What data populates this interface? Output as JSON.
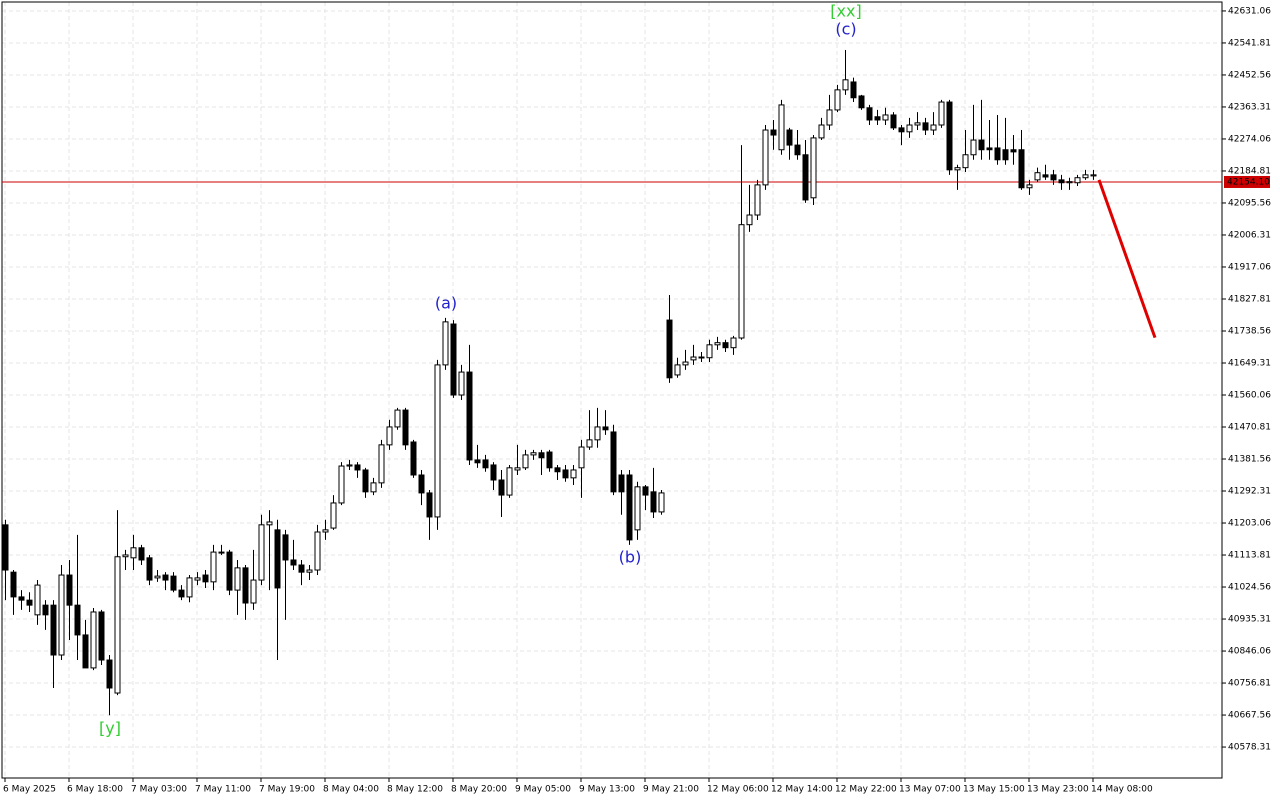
{
  "chart_data": {
    "type": "candlestick",
    "categories": [
      "6 May 2025",
      null,
      null,
      null,
      null,
      null,
      null,
      null,
      "6 May 18:00",
      null,
      null,
      null,
      null,
      null,
      null,
      null,
      "7 May 03:00",
      null,
      null,
      null,
      null,
      null,
      null,
      null,
      "7 May 11:00",
      null,
      null,
      null,
      null,
      null,
      null,
      null,
      "7 May 19:00",
      null,
      null,
      null,
      null,
      null,
      null,
      null,
      "8 May 04:00",
      null,
      null,
      null,
      null,
      null,
      null,
      null,
      "8 May 12:00",
      null,
      null,
      null,
      null,
      null,
      null,
      null,
      "8 May 20:00",
      null,
      null,
      null,
      null,
      null,
      null,
      null,
      "9 May 05:00",
      null,
      null,
      null,
      null,
      null,
      null,
      null,
      "9 May 13:00",
      null,
      null,
      null,
      null,
      null,
      null,
      null,
      "9 May 21:00",
      null,
      null,
      null,
      null,
      null,
      null,
      null,
      "12 May 06:00",
      null,
      null,
      null,
      null,
      null,
      null,
      null,
      "12 May 14:00",
      null,
      null,
      null,
      null,
      null,
      null,
      null,
      "12 May 22:00",
      null,
      null,
      null,
      null,
      null,
      null,
      null,
      "13 May 07:00",
      null,
      null,
      null,
      null,
      null,
      null,
      null,
      "13 May 15:00",
      null,
      null,
      null,
      null,
      null,
      null,
      null,
      "13 May 23:00",
      null,
      null,
      null,
      null,
      null,
      null,
      null,
      "14 May 08:00"
    ],
    "open": [
      41198,
      41066,
      40997,
      40988,
      40947,
      40974,
      40974,
      40835,
      41058,
      40974,
      40891,
      40799,
      40955,
      40821,
      40729,
      41109,
      41106,
      41134,
      41106,
      41050,
      41058,
      41055,
      41016,
      40997,
      41044,
      41058,
      41039,
      41120,
      41122,
      41016,
      41078,
      40980,
      41044,
      41198,
      41184,
      41170,
      41100,
      41086,
      41066,
      41072,
      41178,
      41189,
      41259,
      41362,
      41365,
      41351,
      41290,
      41315,
      41421,
      41471,
      41518,
      41429,
      41337,
      41287,
      41220,
      41644,
      41758,
      41560,
      41624,
      41379,
      41379,
      41365,
      41323,
      41281,
      41351,
      41357,
      41393,
      41399,
      41401,
      41357,
      41351,
      41329,
      41357,
      41415,
      41435,
      41471,
      41457,
      41337,
      41337,
      41184,
      41304,
      41290,
      41234,
      41769,
      41616,
      41644,
      41658,
      41664,
      41664,
      41700,
      41706,
      41692,
      41719,
      42035,
      42062,
      42146,
      42299,
      42244,
      42299,
      42257,
      42230,
      42110,
      42277,
      42313,
      42355,
      42411,
      42433,
      42394,
      42361,
      42336,
      42327,
      42341,
      42305,
      42294,
      42313,
      42319,
      42299,
      42313,
      42377,
      42188,
      42194,
      42230,
      42271,
      42249,
      42249,
      42244,
      42244,
      42244,
      42138,
      42160,
      42174,
      42174,
      42160,
      42152,
      42152,
      42166,
      42171
    ],
    "high": [
      41212,
      41072,
      41016,
      41010,
      41044,
      40988,
      40988,
      41086,
      41100,
      41170,
      40933,
      40966,
      40961,
      40835,
      41239,
      41128,
      41170,
      41142,
      41114,
      41072,
      41066,
      41066,
      41030,
      41058,
      41066,
      41072,
      41142,
      41142,
      41128,
      41100,
      41086,
      41128,
      41226,
      41239,
      41212,
      41184,
      41156,
      41100,
      41086,
      41198,
      41212,
      41281,
      41373,
      41379,
      41373,
      41357,
      41329,
      41435,
      41491,
      41524,
      41524,
      41435,
      41351,
      41295,
      41658,
      41775,
      41769,
      41644,
      41700,
      41421,
      41393,
      41373,
      41351,
      41365,
      41421,
      41407,
      41407,
      41407,
      41407,
      41365,
      41365,
      41365,
      41435,
      41518,
      41524,
      41518,
      41477,
      41351,
      41351,
      41318,
      41309,
      41357,
      41295,
      41839,
      41664,
      41686,
      41700,
      41680,
      41714,
      41722,
      41714,
      41725,
      42257,
      42146,
      42160,
      42313,
      42327,
      42383,
      42305,
      42299,
      42271,
      42285,
      42333,
      42397,
      42425,
      42522,
      42445,
      42397,
      42369,
      42355,
      42361,
      42349,
      42313,
      42333,
      42349,
      42333,
      42349,
      42383,
      42383,
      42202,
      42299,
      42369,
      42383,
      42327,
      42341,
      42333,
      42285,
      42299,
      42160,
      42194,
      42202,
      42188,
      42174,
      42166,
      42174,
      42188,
      42188
    ],
    "low": [
      40988,
      40947,
      40961,
      40955,
      40919,
      40905,
      40743,
      40821,
      40877,
      40821,
      40799,
      40793,
      40807,
      40667,
      40723,
      41072,
      41072,
      41086,
      41030,
      41039,
      41016,
      41010,
      40988,
      40982,
      41030,
      41022,
      41016,
      41114,
      41002,
      40947,
      40933,
      40961,
      41030,
      41016,
      40821,
      40933,
      41072,
      41030,
      41044,
      41058,
      41156,
      41184,
      41253,
      41351,
      41329,
      41273,
      41281,
      41301,
      41407,
      41463,
      41407,
      41329,
      41253,
      41156,
      41184,
      41630,
      41552,
      41546,
      41365,
      41357,
      41346,
      41295,
      41220,
      41273,
      41337,
      41351,
      41379,
      41337,
      41346,
      41323,
      41318,
      41309,
      41273,
      41407,
      41413,
      41449,
      41281,
      41226,
      41142,
      41156,
      41239,
      41217,
      41226,
      41594,
      41608,
      41630,
      41644,
      41652,
      41652,
      41686,
      41680,
      41672,
      41714,
      42015,
      42048,
      42132,
      42244,
      42230,
      42216,
      42216,
      42096,
      42090,
      42271,
      42299,
      42349,
      42397,
      42377,
      42355,
      42313,
      42313,
      42313,
      42299,
      42257,
      42277,
      42299,
      42285,
      42285,
      42305,
      42174,
      42132,
      42182,
      42216,
      42216,
      42216,
      42202,
      42202,
      42202,
      42132,
      42118,
      42155,
      42160,
      42146,
      42132,
      42132,
      42143,
      42160,
      42160
    ],
    "close": [
      41072,
      40997,
      40988,
      40974,
      41030,
      40947,
      40835,
      41058,
      40974,
      40891,
      40799,
      40955,
      40821,
      40743,
      41109,
      41114,
      41134,
      41100,
      41044,
      41055,
      41044,
      41016,
      40997,
      41050,
      41050,
      41039,
      41122,
      41122,
      41016,
      41078,
      40980,
      41044,
      41198,
      41206,
      41022,
      41100,
      41086,
      41066,
      41072,
      41178,
      41184,
      41259,
      41362,
      41365,
      41351,
      41290,
      41315,
      41421,
      41471,
      41518,
      41421,
      41337,
      41287,
      41220,
      41644,
      41764,
      41560,
      41624,
      41379,
      41371,
      41357,
      41323,
      41281,
      41357,
      41357,
      41393,
      41399,
      41385,
      41357,
      41346,
      41329,
      41351,
      41415,
      41435,
      41471,
      41463,
      41290,
      41290,
      41156,
      41304,
      41281,
      41234,
      41287,
      41608,
      41644,
      41652,
      41666,
      41666,
      41700,
      41706,
      41692,
      41719,
      42035,
      42062,
      42146,
      42299,
      42285,
      42369,
      42257,
      42230,
      42104,
      42277,
      42313,
      42355,
      42411,
      42439,
      42389,
      42361,
      42327,
      42327,
      42341,
      42305,
      42294,
      42313,
      42319,
      42299,
      42313,
      42377,
      42188,
      42194,
      42230,
      42271,
      42244,
      42244,
      42216,
      42216,
      42238,
      42138,
      42146,
      42180,
      42168,
      42160,
      42152,
      42155,
      42166,
      42174,
      42174
    ],
    "ylim": [
      40492,
      42656
    ],
    "yticks": [
      42631.06,
      42541.81,
      42452.56,
      42363.31,
      42274.06,
      42184.81,
      42095.56,
      42006.31,
      41917.06,
      41827.81,
      41738.56,
      41649.31,
      41560.06,
      41470.81,
      41381.56,
      41292.31,
      41203.06,
      41113.81,
      41024.56,
      40935.31,
      40846.06,
      40756.81,
      40667.56,
      40578.31
    ],
    "grid": true,
    "up_color": "#ffffff",
    "down_color": "#000000",
    "price_line": {
      "value": 42154.1,
      "label": "42154.10",
      "color": "#cc0000"
    },
    "forecast": {
      "color": "#e00000",
      "values": [
        42160,
        41720
      ]
    },
    "annotations": [
      {
        "text": "[y]",
        "color": "#33cc33"
      },
      {
        "text": "(a)",
        "color": "#2222cc"
      },
      {
        "text": "(b)",
        "color": "#2222cc"
      },
      {
        "text": "(c)",
        "color": "#2222cc"
      },
      {
        "text": "[xx]",
        "color": "#33cc33"
      }
    ]
  }
}
